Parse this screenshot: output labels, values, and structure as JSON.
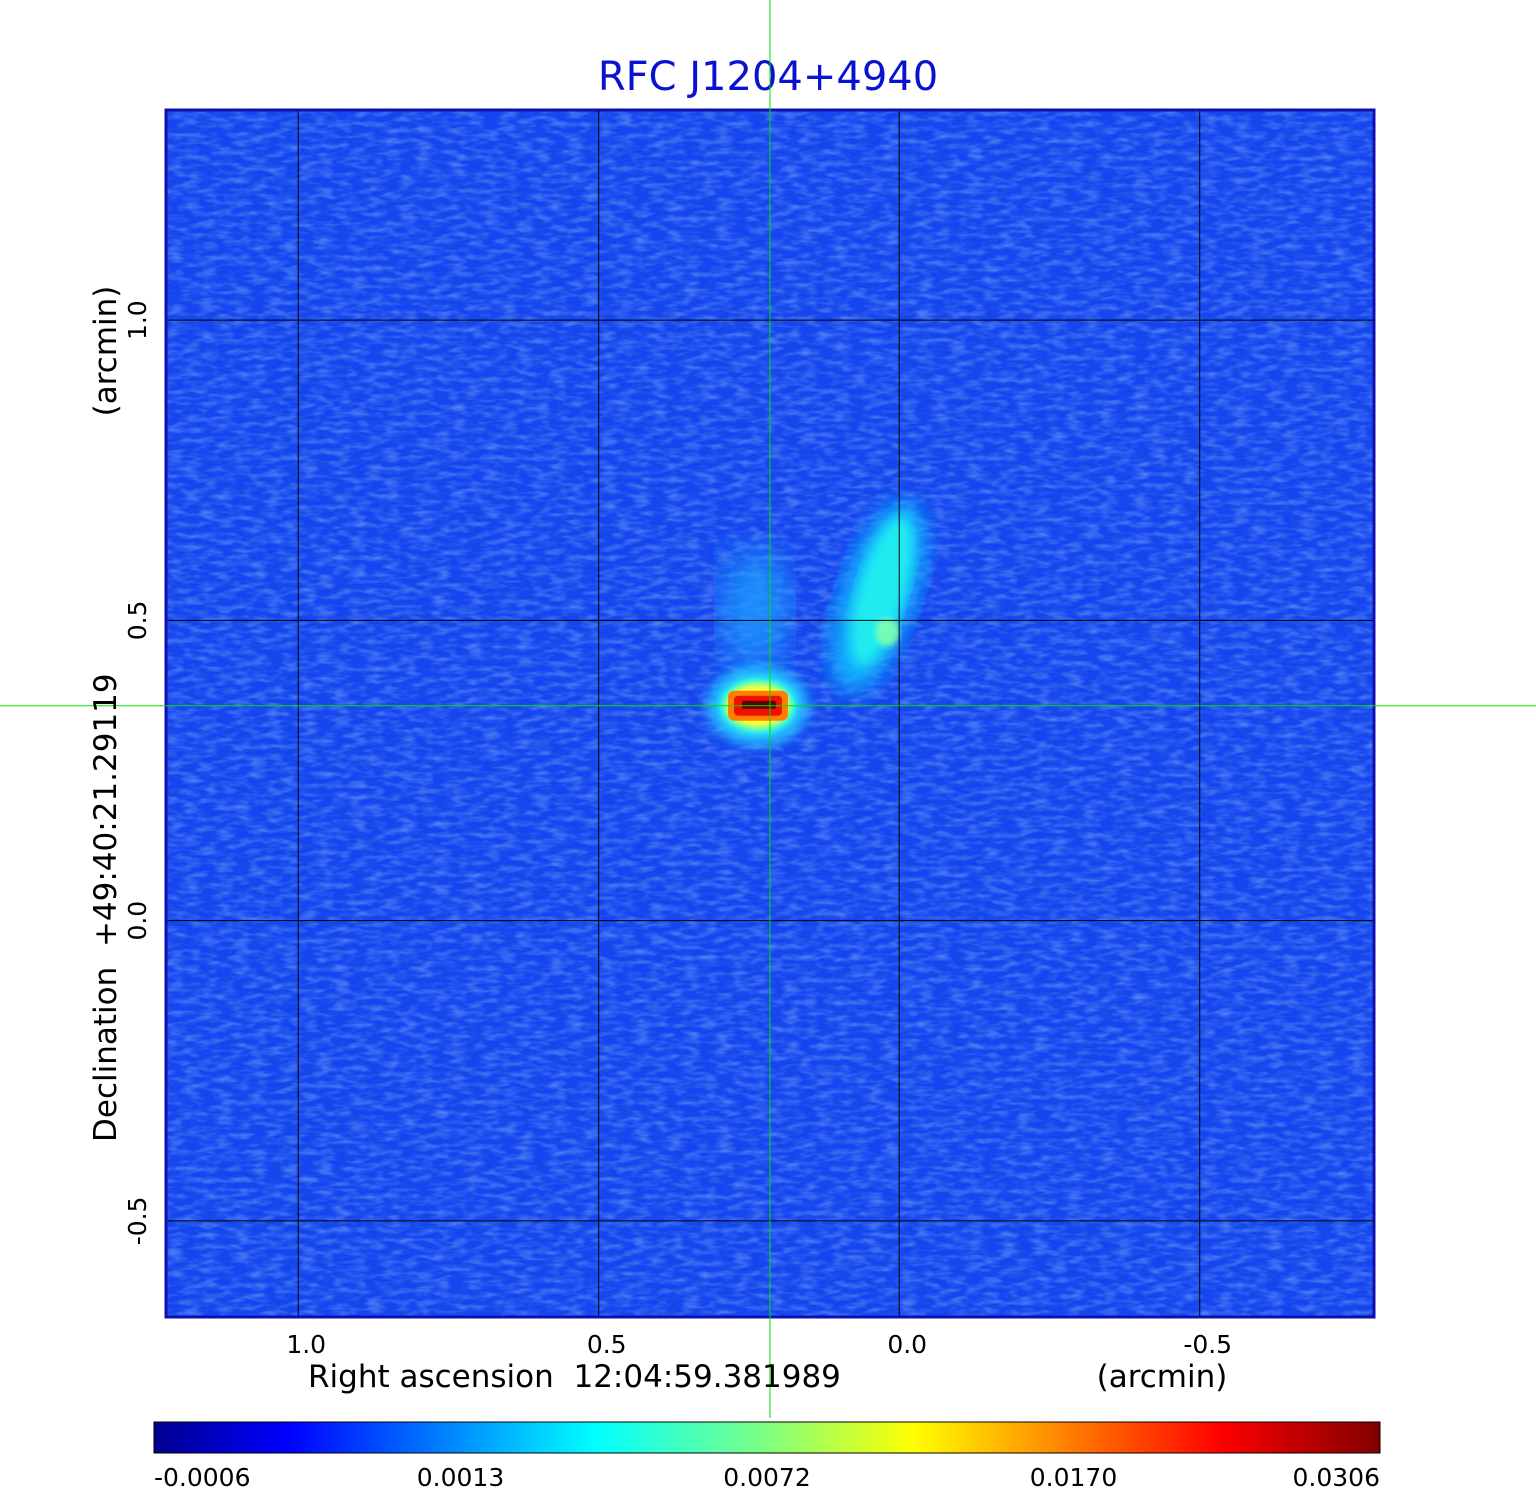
{
  "chart_data": {
    "type": "heatmap",
    "title": "RFC J1204+4940",
    "xlabel": "Right ascension  12:04:59.381989",
    "xlabel_unit": "(arcmin)",
    "ylabel": "Declination  +49:40:21.29119",
    "ylabel_unit": "(arcmin)",
    "x_ticks": [
      "1.0",
      "0.5",
      "0.0",
      "-0.5"
    ],
    "x_tick_values": [
      1.0,
      0.5,
      0.0,
      -0.5
    ],
    "y_ticks": [
      "1.0",
      "0.5",
      "0.0",
      "-0.5"
    ],
    "y_tick_values": [
      1.0,
      0.5,
      0.0,
      -0.5
    ],
    "xlim": [
      1.22,
      -0.79
    ],
    "ylim": [
      -0.66,
      1.35
    ],
    "grid": true,
    "crosshair": {
      "x": 0.215,
      "y": 0.358
    },
    "colorbar": {
      "ticks": [
        "-0.0006",
        "0.0013",
        "0.0072",
        "0.0170",
        "0.0306"
      ],
      "colormap": "jet",
      "placement": "bottom"
    },
    "features": [
      {
        "x": 0.235,
        "y": 0.358,
        "value": 0.0306
      },
      {
        "x": 0.02,
        "y": 0.48,
        "value": 0.0072
      },
      {
        "x": 0.05,
        "y": 0.6,
        "value": 0.004
      },
      {
        "x": 0.24,
        "y": 0.52,
        "value": 0.002
      }
    ],
    "colors": {
      "title": "#0a12d2",
      "frame": "#1010b0",
      "grid": "#000000",
      "crosshair": "#00e000",
      "background": "#1545ee"
    }
  }
}
